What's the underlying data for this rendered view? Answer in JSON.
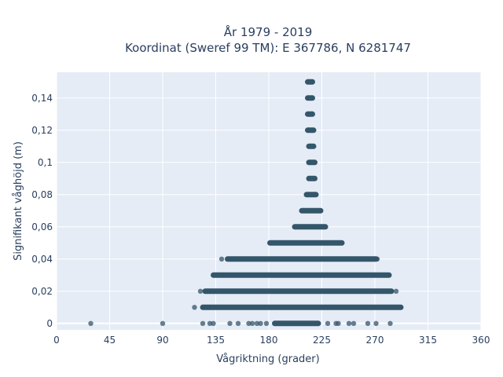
{
  "chart_data": {
    "type": "scatter",
    "title": "År 1979 - 2019",
    "subtitle": "Koordinat (Sweref 99 TM): E 367786, N 6281747",
    "xlabel": "Vågriktning (grader)",
    "ylabel": "Signifikant våghöjd (m)",
    "xlim": [
      0,
      360
    ],
    "ylim": [
      -0.004,
      0.156
    ],
    "x_ticks": [
      0,
      45,
      90,
      135,
      180,
      225,
      270,
      315,
      360
    ],
    "x_tick_labels": [
      "0",
      "45",
      "90",
      "135",
      "180",
      "225",
      "270",
      "315",
      "360"
    ],
    "y_ticks": [
      0,
      0.02,
      0.04,
      0.06,
      0.08,
      0.1,
      0.12,
      0.14
    ],
    "y_tick_labels": [
      "0",
      "0,02",
      "0,04",
      "0,06",
      "0,08",
      "0,1",
      "0,12",
      "0,14"
    ],
    "grid": true,
    "marker_color": "#34566a",
    "plot_background": "#e5ecf6",
    "series": [
      {
        "bands": [
          {
            "y": 0.15,
            "x_min": 213,
            "x_max": 217
          },
          {
            "y": 0.14,
            "x_min": 213,
            "x_max": 217
          },
          {
            "y": 0.13,
            "x_min": 213,
            "x_max": 217
          },
          {
            "y": 0.12,
            "x_min": 213,
            "x_max": 218
          },
          {
            "y": 0.11,
            "x_min": 214,
            "x_max": 218
          },
          {
            "y": 0.1,
            "x_min": 214,
            "x_max": 219
          },
          {
            "y": 0.09,
            "x_min": 214,
            "x_max": 219
          },
          {
            "y": 0.08,
            "x_min": 212,
            "x_max": 220
          },
          {
            "y": 0.07,
            "x_min": 208,
            "x_max": 224
          },
          {
            "y": 0.06,
            "x_min": 202,
            "x_max": 228
          },
          {
            "y": 0.05,
            "x_min": 181,
            "x_max": 242
          },
          {
            "y": 0.04,
            "x_min": 145,
            "x_max": 271
          },
          {
            "y": 0.03,
            "x_min": 133,
            "x_max": 282
          },
          {
            "y": 0.02,
            "x_min": 126,
            "x_max": 284
          },
          {
            "y": 0.01,
            "x_min": 124,
            "x_max": 292
          },
          {
            "y": 0.0,
            "x_min": 185,
            "x_max": 222
          }
        ],
        "points": [
          {
            "x": 140,
            "y": 0.04
          },
          {
            "x": 272,
            "y": 0.04
          },
          {
            "x": 242,
            "y": 0.05
          },
          {
            "x": 122,
            "y": 0.02
          },
          {
            "x": 288,
            "y": 0.02
          },
          {
            "x": 117,
            "y": 0.01
          },
          {
            "x": 292,
            "y": 0.01
          },
          {
            "x": 29,
            "y": 0
          },
          {
            "x": 90,
            "y": 0
          },
          {
            "x": 124,
            "y": 0
          },
          {
            "x": 130,
            "y": 0
          },
          {
            "x": 133,
            "y": 0
          },
          {
            "x": 147,
            "y": 0
          },
          {
            "x": 154,
            "y": 0
          },
          {
            "x": 163,
            "y": 0
          },
          {
            "x": 166,
            "y": 0
          },
          {
            "x": 170,
            "y": 0
          },
          {
            "x": 173,
            "y": 0
          },
          {
            "x": 178,
            "y": 0
          },
          {
            "x": 230,
            "y": 0
          },
          {
            "x": 237,
            "y": 0
          },
          {
            "x": 239,
            "y": 0
          },
          {
            "x": 248,
            "y": 0
          },
          {
            "x": 252,
            "y": 0
          },
          {
            "x": 264,
            "y": 0
          },
          {
            "x": 271,
            "y": 0
          },
          {
            "x": 283,
            "y": 0
          }
        ]
      }
    ]
  }
}
